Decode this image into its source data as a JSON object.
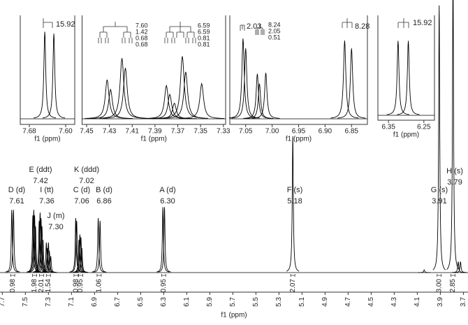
{
  "chart_data": [
    {
      "type": "spectrum",
      "xlabel": "f1 (ppm)",
      "xlim": [
        7.72,
        3.66
      ],
      "ylim": [
        0,
        100
      ],
      "xticks": [
        7.7,
        7.5,
        7.3,
        7.1,
        6.9,
        6.7,
        6.5,
        6.3,
        6.1,
        5.9,
        5.7,
        5.5,
        5.3,
        5.1,
        4.9,
        4.7,
        4.5,
        4.3,
        4.1,
        3.9,
        3.7
      ],
      "x": [
        7.618,
        7.603,
        7.435,
        7.427,
        7.42,
        7.412,
        7.38,
        7.372,
        7.364,
        7.356,
        7.347,
        7.318,
        7.31,
        7.3,
        7.292,
        7.28,
        7.063,
        7.055,
        7.035,
        7.027,
        7.018,
        7.01,
        6.868,
        6.852,
        6.307,
        6.293,
        5.18,
        4.04,
        3.91,
        3.79,
        3.745,
        3.725
      ],
      "values": [
        23,
        23,
        21,
        23,
        21,
        17,
        19,
        22,
        20,
        17,
        12,
        11,
        9,
        11,
        8,
        6,
        20,
        19,
        12,
        14,
        13,
        9,
        20,
        19,
        24,
        24,
        50,
        1,
        98,
        110,
        4,
        4
      ],
      "annotations": [
        {
          "label": "D (d)",
          "shift": {
            "value": 7.61,
            "label": "7.61"
          },
          "integral": {
            "value": 0.98,
            "label": "0.98"
          }
        },
        {
          "label": "E (ddt)",
          "shift": {
            "value": 7.42,
            "label": "7.42"
          },
          "integral": {
            "value": 1.98,
            "label": "1.98"
          }
        },
        {
          "label": "I (tt)",
          "shift": {
            "value": 7.36,
            "label": "7.36"
          },
          "integral": {
            "value": 2.01,
            "label": "2.01"
          }
        },
        {
          "label": "J (m)",
          "shift": {
            "value": 7.3,
            "label": "7.30"
          },
          "integral": {
            "value": 1.54,
            "label": "1.54"
          }
        },
        {
          "label": "C (d)",
          "shift": {
            "value": 7.06,
            "label": "7.06"
          },
          "integral": {
            "value": 0.98,
            "label": "0.98"
          }
        },
        {
          "label": "K (ddd)",
          "shift": {
            "value": 7.02,
            "label": "7.02"
          },
          "integral": {
            "value": 0.95,
            "label": "0.95"
          }
        },
        {
          "label": "B (d)",
          "shift": {
            "value": 6.86,
            "label": "6.86"
          },
          "integral": {
            "value": 1.06,
            "label": "1.06"
          }
        },
        {
          "label": "A (d)",
          "shift": {
            "value": 6.3,
            "label": "6.30"
          },
          "integral": {
            "value": 0.95,
            "label": "0.95"
          }
        },
        {
          "label": "F (s)",
          "shift": {
            "value": 5.18,
            "label": "5.18"
          },
          "integral": {
            "value": 2.07,
            "label": "2.07"
          }
        },
        {
          "label": "G (s)",
          "shift": {
            "value": 3.91,
            "label": "3.91"
          },
          "integral": {
            "value": 3.0,
            "label": "3.00"
          }
        },
        {
          "label": "H (s)",
          "shift": {
            "value": 3.79,
            "label": "3.79"
          },
          "integral": {
            "value": 2.85,
            "label": "2.85"
          }
        }
      ]
    },
    {
      "type": "spectrum",
      "xlabel": "f1 (ppm)",
      "xlim": [
        7.7,
        7.58
      ],
      "ylim": [
        0,
        100
      ],
      "xticks": [
        7.68,
        {
          "value": 7.6,
          "label": "7.60"
        }
      ],
      "x": [
        7.646,
        7.626
      ],
      "values": [
        89,
        87
      ],
      "couplings": [
        [
          "15.92"
        ]
      ]
    },
    {
      "type": "spectrum",
      "xlabel": "f1 (ppm)",
      "xlim": [
        7.454,
        7.328
      ],
      "ylim": [
        0,
        100
      ],
      "xticks": [
        7.45,
        7.43,
        7.41,
        7.39,
        7.37,
        7.35,
        7.33
      ],
      "x": [
        7.432,
        7.429,
        7.419,
        7.416,
        7.38,
        7.377,
        7.373,
        7.366,
        7.363,
        7.349
      ],
      "values": [
        40,
        30,
        62,
        52,
        34,
        25,
        16,
        64,
        48,
        36
      ],
      "couplings": [
        [
          "7.60",
          "1.42",
          "0.68",
          "0.68"
        ],
        [
          "6.59",
          "6.59",
          "0.81",
          "0.81"
        ]
      ]
    },
    {
      "type": "spectrum",
      "xlabel": "f1 (ppm)",
      "xlim": [
        7.08,
        6.82
      ],
      "ylim": [
        0,
        100
      ],
      "xticks": [
        7.05,
        {
          "value": 7.0,
          "label": "7.00"
        },
        6.95,
        {
          "value": 6.9,
          "label": "6.90"
        },
        6.85
      ],
      "x": [
        7.055,
        7.05,
        7.028,
        7.024,
        7.012,
        6.863,
        6.85
      ],
      "values": [
        82,
        72,
        46,
        36,
        47,
        80,
        72
      ],
      "couplings": [
        [
          "2.03"
        ],
        [
          "8.24",
          "2.05",
          "0.51"
        ],
        [
          "8.28"
        ]
      ]
    },
    {
      "type": "spectrum",
      "xlabel": "f1 (ppm)",
      "xlim": [
        6.38,
        6.22
      ],
      "ylim": [
        0,
        100
      ],
      "xticks": [
        6.35,
        6.25
      ],
      "x": [
        6.323,
        6.294
      ],
      "values": [
        79,
        79
      ],
      "couplings": [
        [
          "15.92"
        ]
      ]
    }
  ]
}
